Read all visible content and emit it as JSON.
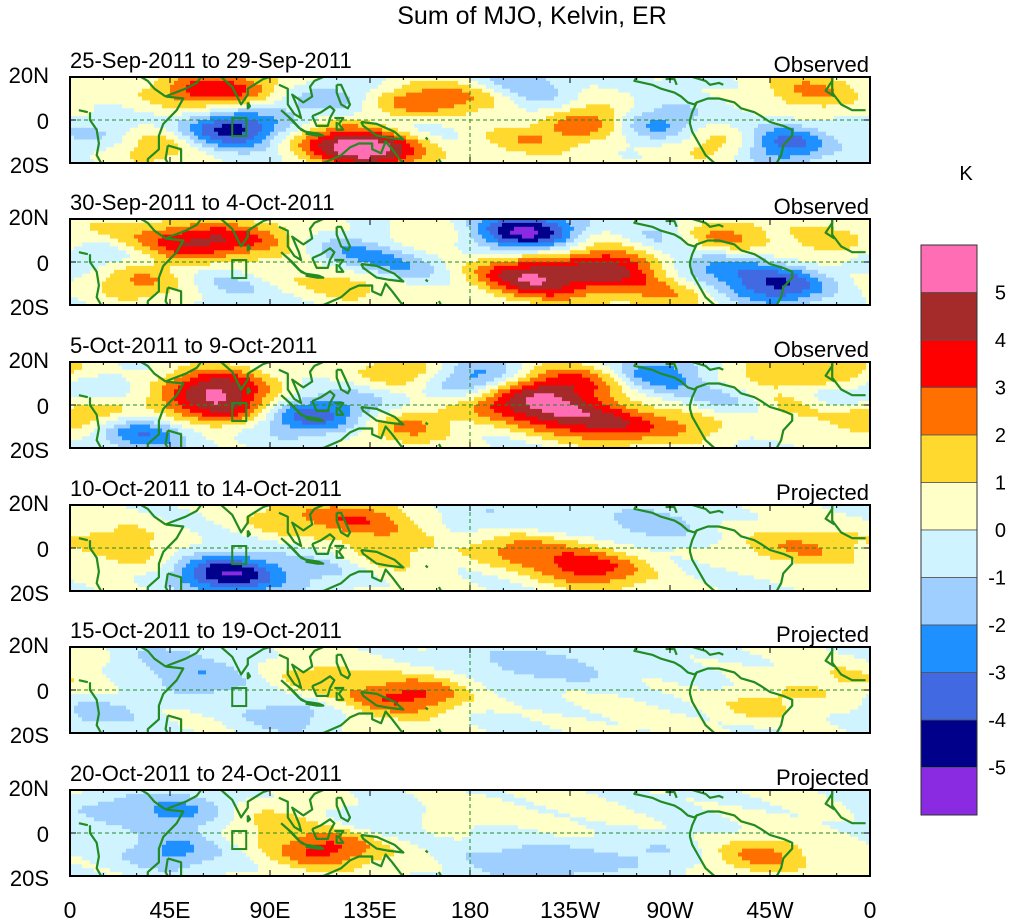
{
  "chart_data": {
    "type": "heatmap",
    "title": "Sum of MJO, Kelvin, ER",
    "colorbar": {
      "units_label": "K",
      "tick_labels": [
        "5",
        "4",
        "3",
        "2",
        "1",
        "0",
        "-1",
        "-2",
        "-3",
        "-4",
        "-5"
      ],
      "colors_top_to_bottom": [
        "#ff6eb4",
        "#a52a2a",
        "#ff0000",
        "#ff7000",
        "#ffd92e",
        "#ffffc8",
        "#d0f4ff",
        "#9fcfff",
        "#1e90ff",
        "#4169e1",
        "#00008b",
        "#8a2be2"
      ]
    },
    "x_tick_labels": [
      "0",
      "45E",
      "90E",
      "135E",
      "180",
      "135W",
      "90W",
      "45W",
      "0"
    ],
    "y_tick_labels": [
      "20N",
      "0",
      "20S"
    ],
    "coastline_color": "#228b22",
    "panels": [
      {
        "label": "25-Sep-2011 to 29-Sep-2011",
        "type": "Observed",
        "blobs": [
          [
            60,
            15,
            3.5
          ],
          [
            72,
            -5,
            -4.5
          ],
          [
            35,
            -12,
            2.5
          ],
          [
            120,
            -12,
            3.5
          ],
          [
            140,
            -15,
            4.5
          ],
          [
            150,
            8,
            2
          ],
          [
            150,
            -5,
            -1.5
          ],
          [
            165,
            12,
            1.5
          ],
          [
            190,
            12,
            2.5
          ],
          [
            200,
            17,
            -3
          ],
          [
            205,
            -10,
            2
          ],
          [
            235,
            0,
            3.5
          ],
          [
            260,
            -2,
            -3
          ],
          [
            215,
            5,
            -1.5
          ],
          [
            295,
            -12,
            2.5
          ],
          [
            320,
            -12,
            -4
          ],
          [
            335,
            15,
            2
          ],
          [
            100,
            10,
            -1.5
          ],
          [
            125,
            12,
            -1.5
          ],
          [
            20,
            -8,
            -2
          ],
          [
            85,
            15,
            2
          ]
        ]
      },
      {
        "label": "30-Sep-2011 to 4-Oct-2011",
        "type": "Observed",
        "blobs": [
          [
            55,
            10,
            3.5
          ],
          [
            80,
            12,
            2.5
          ],
          [
            15,
            5,
            -2
          ],
          [
            30,
            -10,
            2
          ],
          [
            25,
            12,
            1.5
          ],
          [
            75,
            -10,
            -1.5
          ],
          [
            95,
            -5,
            1.5
          ],
          [
            125,
            5,
            -2
          ],
          [
            145,
            -3,
            -2.5
          ],
          [
            130,
            -10,
            2
          ],
          [
            165,
            12,
            1.5
          ],
          [
            200,
            15,
            -4
          ],
          [
            220,
            15,
            -3
          ],
          [
            200,
            -5,
            3.5
          ],
          [
            215,
            -12,
            3
          ],
          [
            245,
            -3,
            4
          ],
          [
            235,
            12,
            2
          ],
          [
            270,
            -15,
            2
          ],
          [
            290,
            -3,
            -2.5
          ],
          [
            290,
            12,
            3
          ],
          [
            320,
            -12,
            -4
          ],
          [
            265,
            12,
            -2
          ],
          [
            345,
            10,
            1.5
          ]
        ]
      },
      {
        "label": "5-Oct-2011 to 9-Oct-2011",
        "type": "Observed",
        "blobs": [
          [
            65,
            10,
            4.5
          ],
          [
            80,
            -2,
            4
          ],
          [
            50,
            -5,
            2.5
          ],
          [
            35,
            -13,
            -4
          ],
          [
            90,
            -5,
            -1.5
          ],
          [
            105,
            -5,
            -3
          ],
          [
            130,
            -5,
            -1.5
          ],
          [
            150,
            -10,
            2.5
          ],
          [
            140,
            8,
            -1.5
          ],
          [
            180,
            10,
            -1.5
          ],
          [
            150,
            15,
            3
          ],
          [
            195,
            2,
            3.5
          ],
          [
            220,
            -5,
            3.5
          ],
          [
            245,
            -10,
            3
          ],
          [
            280,
            -10,
            2
          ],
          [
            185,
            15,
            -2
          ],
          [
            215,
            10,
            2.5
          ],
          [
            240,
            12,
            2.5
          ],
          [
            260,
            15,
            -3.5
          ],
          [
            300,
            2,
            -2
          ],
          [
            320,
            0,
            2
          ],
          [
            345,
            5,
            -2
          ],
          [
            5,
            -5,
            2.5
          ],
          [
            10,
            10,
            -1.5
          ],
          [
            310,
            15,
            1.5
          ],
          [
            350,
            15,
            2.5
          ]
        ]
      },
      {
        "label": "10-Oct-2011 to 14-Oct-2011",
        "type": "Projected",
        "blobs": [
          [
            75,
            -14,
            -3.5
          ],
          [
            60,
            -12,
            -2
          ],
          [
            35,
            -5,
            1
          ],
          [
            95,
            15,
            1.5
          ],
          [
            130,
            15,
            2.5
          ],
          [
            140,
            -5,
            1.5
          ],
          [
            120,
            -10,
            -1.5
          ],
          [
            160,
            10,
            1
          ],
          [
            200,
            0,
            2.5
          ],
          [
            225,
            -8,
            2
          ],
          [
            240,
            -12,
            2
          ],
          [
            260,
            12,
            -1.5
          ],
          [
            310,
            0,
            1
          ],
          [
            335,
            0,
            1.5
          ],
          [
            20,
            5,
            1
          ],
          [
            180,
            15,
            -1
          ],
          [
            215,
            12,
            -1
          ]
        ]
      },
      {
        "label": "15-Oct-2011 to 19-Oct-2011",
        "type": "Projected",
        "blobs": [
          [
            160,
            -2,
            2.5
          ],
          [
            140,
            -5,
            1.5
          ],
          [
            110,
            5,
            1.5
          ],
          [
            60,
            5,
            -1.5
          ],
          [
            40,
            15,
            -1.2
          ],
          [
            100,
            -12,
            -1.5
          ],
          [
            205,
            15,
            -1.5
          ],
          [
            230,
            10,
            -1.2
          ],
          [
            310,
            -8,
            1.5
          ],
          [
            15,
            -12,
            -1.5
          ],
          [
            350,
            5,
            1
          ]
        ]
      },
      {
        "label": "20-Oct-2011 to 24-Oct-2011",
        "type": "Projected",
        "blobs": [
          [
            50,
            10,
            -2
          ],
          [
            45,
            -10,
            -2.5
          ],
          [
            85,
            5,
            1.5
          ],
          [
            110,
            -10,
            2.5
          ],
          [
            125,
            -5,
            1.5
          ],
          [
            140,
            5,
            -1.5
          ],
          [
            195,
            -15,
            -1.2
          ],
          [
            225,
            -15,
            -1.5
          ],
          [
            260,
            -12,
            -1.2
          ],
          [
            310,
            -12,
            2.5
          ],
          [
            170,
            10,
            1
          ],
          [
            20,
            12,
            -1.5
          ]
        ]
      }
    ]
  }
}
